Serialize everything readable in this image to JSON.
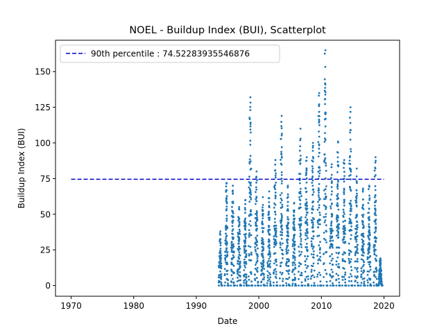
{
  "chart_data": {
    "type": "scatter",
    "title": "NOEL - Buildup Index (BUI), Scatterplot",
    "xlabel": "Date",
    "ylabel": "Buildup Index (BUI)",
    "xlim": [
      1967.5,
      2022.5
    ],
    "ylim": [
      -7.5,
      172
    ],
    "x_ticks": [
      1970,
      1980,
      1990,
      2000,
      2010,
      2020
    ],
    "y_ticks": [
      0,
      25,
      50,
      75,
      100,
      125,
      150
    ],
    "grid": false,
    "legend_position": "top-left",
    "point_color": "#1f77b4",
    "series": [
      {
        "clusters": [
          {
            "year": 1993.8,
            "peak": 38
          },
          {
            "year": 1994.8,
            "peak": 72
          },
          {
            "year": 1995.8,
            "peak": 70
          },
          {
            "year": 1996.8,
            "peak": 55
          },
          {
            "year": 1997.8,
            "peak": 60
          },
          {
            "year": 1998.6,
            "peak": 132
          },
          {
            "year": 1999.6,
            "peak": 80
          },
          {
            "year": 2000.6,
            "peak": 62
          },
          {
            "year": 2001.6,
            "peak": 66
          },
          {
            "year": 2002.6,
            "peak": 88
          },
          {
            "year": 2003.6,
            "peak": 119
          },
          {
            "year": 2004.6,
            "peak": 70
          },
          {
            "year": 2005.6,
            "peak": 58
          },
          {
            "year": 2006.6,
            "peak": 110
          },
          {
            "year": 2007.6,
            "peak": 90
          },
          {
            "year": 2008.6,
            "peak": 100
          },
          {
            "year": 2009.6,
            "peak": 135
          },
          {
            "year": 2010.6,
            "peak": 165
          },
          {
            "year": 2011.6,
            "peak": 85
          },
          {
            "year": 2012.6,
            "peak": 101
          },
          {
            "year": 2013.6,
            "peak": 88
          },
          {
            "year": 2014.6,
            "peak": 125
          },
          {
            "year": 2015.6,
            "peak": 82
          },
          {
            "year": 2016.6,
            "peak": 68
          },
          {
            "year": 2017.6,
            "peak": 70
          },
          {
            "year": 2018.6,
            "peak": 90
          },
          {
            "year": 2019.4,
            "peak": 19
          }
        ]
      }
    ],
    "reference_line": {
      "label": "90th percentile : 74.52283935546876",
      "y": 74.52283935546876,
      "x_start": 1970,
      "x_end": 2020,
      "color": "#0000cc"
    }
  }
}
